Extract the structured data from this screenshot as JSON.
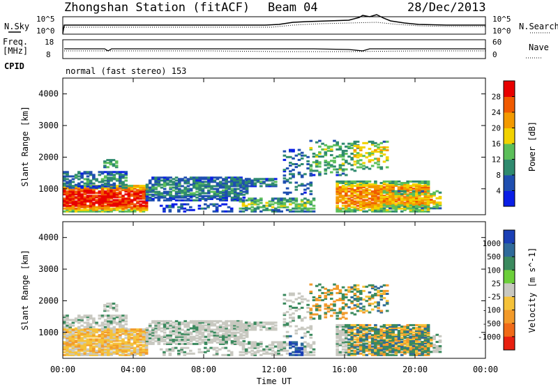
{
  "header": {
    "title": "Zhongshan Station (fitACF)",
    "beam": "Beam 04",
    "date": "28/Dec/2013"
  },
  "top_panels": {
    "nsky_label": "N.Sky",
    "nsearch_label": "N.Search",
    "nsky_ticks": [
      "10^5",
      "10^0"
    ],
    "nsearch_ticks": [
      "10^5",
      "10^0"
    ],
    "freq_label_1": "Freq.",
    "freq_label_2": "[MHz]",
    "freq_ticks": [
      "18",
      "8"
    ],
    "nave_label": "Nave",
    "nave_ticks": [
      "60",
      "0"
    ],
    "cpid_label": "CPID",
    "cpid_text": "normal (fast stereo) 153"
  },
  "chart_data": [
    {
      "type": "heatmap",
      "panel": "power",
      "ylabel": "Slant Range [km]",
      "ylim": [
        180,
        4500
      ],
      "yticks": [
        "1000",
        "2000",
        "3000",
        "4000"
      ],
      "colorbar_label": "Power [dB]",
      "colorbar_ticks": [
        "4",
        "8",
        "12",
        "16",
        "20",
        "24",
        "28"
      ],
      "colorbar_colors": [
        "#0a1ee6",
        "#1f4fb0",
        "#2f8a6e",
        "#5cbf5a",
        "#f2d200",
        "#f39a00",
        "#f05a00",
        "#e80000"
      ]
    },
    {
      "type": "heatmap",
      "panel": "velocity",
      "ylabel": "Slant Range [km]",
      "ylim": [
        180,
        4500
      ],
      "yticks": [
        "1000",
        "2000",
        "3000",
        "4000"
      ],
      "colorbar_label": "Velocity [m s^-1]",
      "colorbar_ticks": [
        "1000",
        "500",
        "100",
        "25",
        "-25",
        "-100",
        "-500",
        "-1000"
      ],
      "colorbar_colors": [
        "#1a3fb5",
        "#2f6a9a",
        "#3b8a5e",
        "#6ccf3a",
        "#c8c8c0",
        "#f5c23a",
        "#f29a2a",
        "#f06a18",
        "#e82010"
      ]
    }
  ],
  "xaxis": {
    "ticks": [
      "00:00",
      "04:00",
      "08:00",
      "12:00",
      "16:00",
      "20:00",
      "00:00"
    ],
    "label": "Time UT"
  }
}
